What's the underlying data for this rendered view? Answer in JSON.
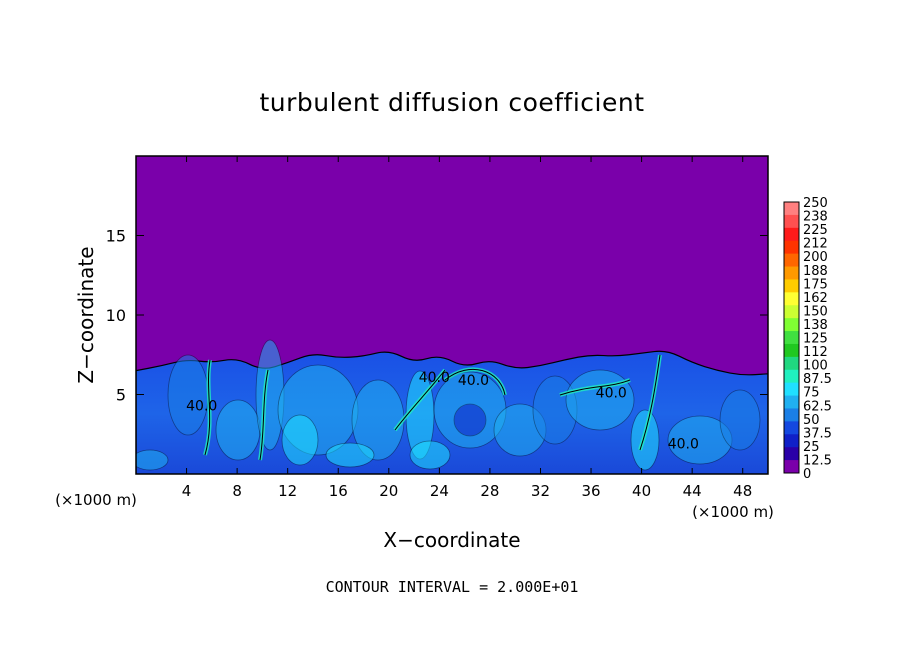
{
  "chart_data": {
    "type": "heatmap",
    "title": "turbulent diffusion coefficient",
    "xlabel": "X−coordinate",
    "ylabel": "Z−coordinate",
    "x_unit_left": "(×1000 m)",
    "x_unit_right": "(×1000 m)",
    "xlim": [
      0,
      50
    ],
    "ylim": [
      0,
      20
    ],
    "xticks": [
      4,
      8,
      12,
      16,
      20,
      24,
      28,
      32,
      36,
      40,
      44,
      48
    ],
    "yticks": [
      5,
      10,
      15
    ],
    "footer": "CONTOUR INTERVAL = 2.000E+01",
    "contour_labels": [
      {
        "text": "40.0",
        "x": 5.2,
        "z": 4.0
      },
      {
        "text": "40.0",
        "x": 23.6,
        "z": 5.8
      },
      {
        "text": "40.0",
        "x": 26.7,
        "z": 5.6
      },
      {
        "text": "40.0",
        "x": 37.6,
        "z": 4.8
      },
      {
        "text": "40.0",
        "x": 43.3,
        "z": 1.6
      }
    ],
    "background_value": 0,
    "boundary_layer_top": [
      [
        0,
        6.5
      ],
      [
        2,
        6.8
      ],
      [
        4,
        7.2
      ],
      [
        6,
        7.0
      ],
      [
        8,
        7.3
      ],
      [
        10,
        6.5
      ],
      [
        12,
        7.0
      ],
      [
        14,
        7.6
      ],
      [
        16,
        7.3
      ],
      [
        18,
        7.4
      ],
      [
        20,
        7.8
      ],
      [
        22,
        7.0
      ],
      [
        24,
        7.5
      ],
      [
        26,
        6.7
      ],
      [
        28,
        7.2
      ],
      [
        30,
        6.6
      ],
      [
        32,
        6.8
      ],
      [
        34,
        7.2
      ],
      [
        36,
        7.5
      ],
      [
        38,
        7.4
      ],
      [
        40,
        7.6
      ],
      [
        42,
        7.8
      ],
      [
        44,
        7.0
      ],
      [
        46,
        6.5
      ],
      [
        48,
        6.2
      ],
      [
        50,
        6.3
      ]
    ],
    "colorbar": {
      "ticks": [
        "250",
        "238",
        "225",
        "212",
        "200",
        "188",
        "175",
        "162",
        "150",
        "138",
        "125",
        "112",
        "100",
        "87.5",
        "75",
        "62.5",
        "50",
        "37.5",
        "25",
        "12.5",
        "0"
      ],
      "colors": [
        "#ff8080",
        "#ff5050",
        "#ff1a1a",
        "#ff3300",
        "#ff6600",
        "#ff9900",
        "#ffcc00",
        "#ffff33",
        "#ccff33",
        "#80ff33",
        "#40e040",
        "#20c820",
        "#20d880",
        "#20f0c0",
        "#20e0ff",
        "#20b0f0",
        "#1a7fe6",
        "#1448e0",
        "#1020c8",
        "#2a00a8",
        "#7a00aa"
      ]
    }
  }
}
